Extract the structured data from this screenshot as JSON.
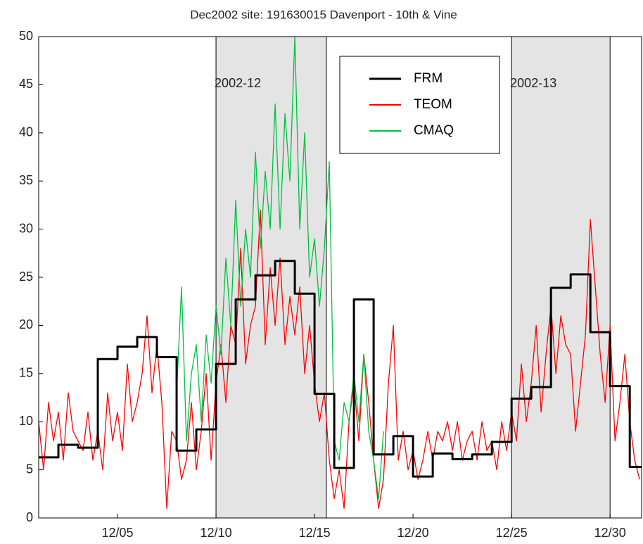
{
  "chart_data": {
    "type": "line",
    "title": "Dec2002 site: 191630015 Davenport - 10th & Vine",
    "xlim": [
      1,
      31.6
    ],
    "ylim": [
      0,
      50
    ],
    "yticks": [
      0,
      5,
      10,
      15,
      20,
      25,
      30,
      35,
      40,
      45,
      50
    ],
    "xticks": [
      {
        "value": 5,
        "label": "12/05"
      },
      {
        "value": 10,
        "label": "12/10"
      },
      {
        "value": 15,
        "label": "12/15"
      },
      {
        "value": 20,
        "label": "12/20"
      },
      {
        "value": 25,
        "label": "12/25"
      },
      {
        "value": 30,
        "label": "12/30"
      }
    ],
    "bands": [
      {
        "start": 10,
        "end": 15.6,
        "label": "2002-12",
        "color": "#e4e4e4"
      },
      {
        "start": 25,
        "end": 30,
        "label": "2002-13",
        "color": "#e4e4e4"
      }
    ],
    "x": [
      1,
      1.25,
      1.5,
      1.75,
      2,
      2.25,
      2.5,
      2.75,
      3,
      3.25,
      3.5,
      3.75,
      4,
      4.25,
      4.5,
      4.75,
      5,
      5.25,
      5.5,
      5.75,
      6,
      6.25,
      6.5,
      6.75,
      7,
      7.25,
      7.5,
      7.75,
      8,
      8.25,
      8.5,
      8.75,
      9,
      9.25,
      9.5,
      9.75,
      10,
      10.25,
      10.5,
      10.75,
      11,
      11.25,
      11.5,
      11.75,
      12,
      12.25,
      12.5,
      12.75,
      13,
      13.25,
      13.5,
      13.75,
      14,
      14.25,
      14.5,
      14.75,
      15,
      15.25,
      15.5,
      15.75,
      16,
      16.25,
      16.5,
      16.75,
      17,
      17.25,
      17.5,
      17.75,
      18,
      18.25,
      18.5,
      18.75,
      19,
      19.25,
      19.5,
      19.75,
      20,
      20.25,
      20.5,
      20.75,
      21,
      21.25,
      21.5,
      21.75,
      22,
      22.25,
      22.5,
      22.75,
      23,
      23.25,
      23.5,
      23.75,
      24,
      24.25,
      24.5,
      24.75,
      25,
      25.25,
      25.5,
      25.75,
      26,
      26.25,
      26.5,
      26.75,
      27,
      27.25,
      27.5,
      27.75,
      28,
      28.25,
      28.5,
      28.75,
      29,
      29.25,
      29.5,
      29.75,
      30,
      30.25,
      30.5,
      30.75,
      31,
      31.25,
      31.5
    ],
    "series": [
      {
        "name": "FRM",
        "color": "#000000",
        "step": true,
        "x": [
          1,
          2,
          3,
          4,
          5,
          6,
          7,
          8,
          9,
          10,
          11,
          12,
          13,
          14,
          15,
          16,
          17,
          18,
          19,
          20,
          21,
          22,
          23,
          24,
          25,
          26,
          27,
          28,
          29,
          30,
          31
        ],
        "values": [
          6.3,
          7.6,
          7.3,
          16.5,
          17.8,
          18.8,
          16.7,
          7.0,
          9.2,
          16.0,
          22.7,
          25.2,
          26.7,
          23.3,
          12.9,
          5.2,
          22.7,
          6.6,
          8.5,
          4.3,
          6.7,
          6.1,
          6.6,
          7.9,
          12.4,
          13.6,
          23.9,
          25.3,
          19.3,
          13.7,
          5.3
        ]
      },
      {
        "name": "TEOM",
        "color": "#ff0000",
        "values": [
          10,
          5,
          12,
          8,
          11,
          6,
          13,
          9,
          8,
          7,
          11,
          6,
          9,
          5,
          13,
          8,
          11,
          7,
          16,
          10,
          12,
          15,
          21,
          13,
          18,
          12,
          1,
          9,
          8,
          4,
          6,
          12,
          5,
          9,
          15,
          6,
          14,
          18,
          12,
          20,
          18,
          28,
          16,
          20,
          22,
          32,
          18,
          26,
          20,
          27,
          18,
          23,
          19,
          24,
          15,
          20,
          14,
          10,
          13,
          6,
          2,
          5,
          1,
          10,
          14,
          8,
          17,
          12,
          6,
          1,
          4,
          14,
          20,
          6,
          9,
          5,
          7,
          4,
          6,
          9,
          6,
          9,
          8,
          10,
          7,
          10,
          6,
          8,
          9,
          6,
          10,
          7,
          8,
          5,
          10,
          7,
          11,
          8,
          16,
          10,
          14,
          20,
          11,
          17,
          22,
          15,
          21,
          18,
          17,
          9,
          14,
          19,
          31,
          24,
          17,
          12,
          20,
          8,
          12,
          17,
          10,
          6,
          4
        ]
      },
      {
        "name": "CMAQ",
        "color": "#00c040",
        "values": [
          null,
          null,
          null,
          null,
          null,
          null,
          null,
          null,
          null,
          null,
          null,
          null,
          null,
          null,
          null,
          null,
          null,
          null,
          null,
          null,
          null,
          null,
          null,
          null,
          null,
          null,
          null,
          null,
          13,
          24,
          8,
          15,
          18,
          10,
          19,
          14,
          22,
          17,
          27,
          20,
          33,
          22,
          30,
          25,
          38,
          28,
          36,
          30,
          43,
          30,
          42,
          35,
          50,
          30,
          40,
          25,
          29,
          22,
          28,
          37,
          8,
          6,
          12,
          10,
          15,
          10,
          17,
          9,
          6,
          2,
          9,
          null,
          null,
          null,
          null,
          null,
          null,
          null,
          null,
          null,
          null,
          null,
          null,
          null,
          null,
          null,
          null,
          null,
          null,
          null,
          null,
          null,
          null,
          null,
          null,
          null,
          null,
          null,
          null,
          null,
          null,
          null,
          null,
          null,
          null,
          null,
          null,
          null,
          null,
          null,
          null,
          null,
          null,
          null,
          null,
          null,
          null,
          null,
          null,
          null,
          null,
          null,
          null
        ]
      }
    ]
  }
}
